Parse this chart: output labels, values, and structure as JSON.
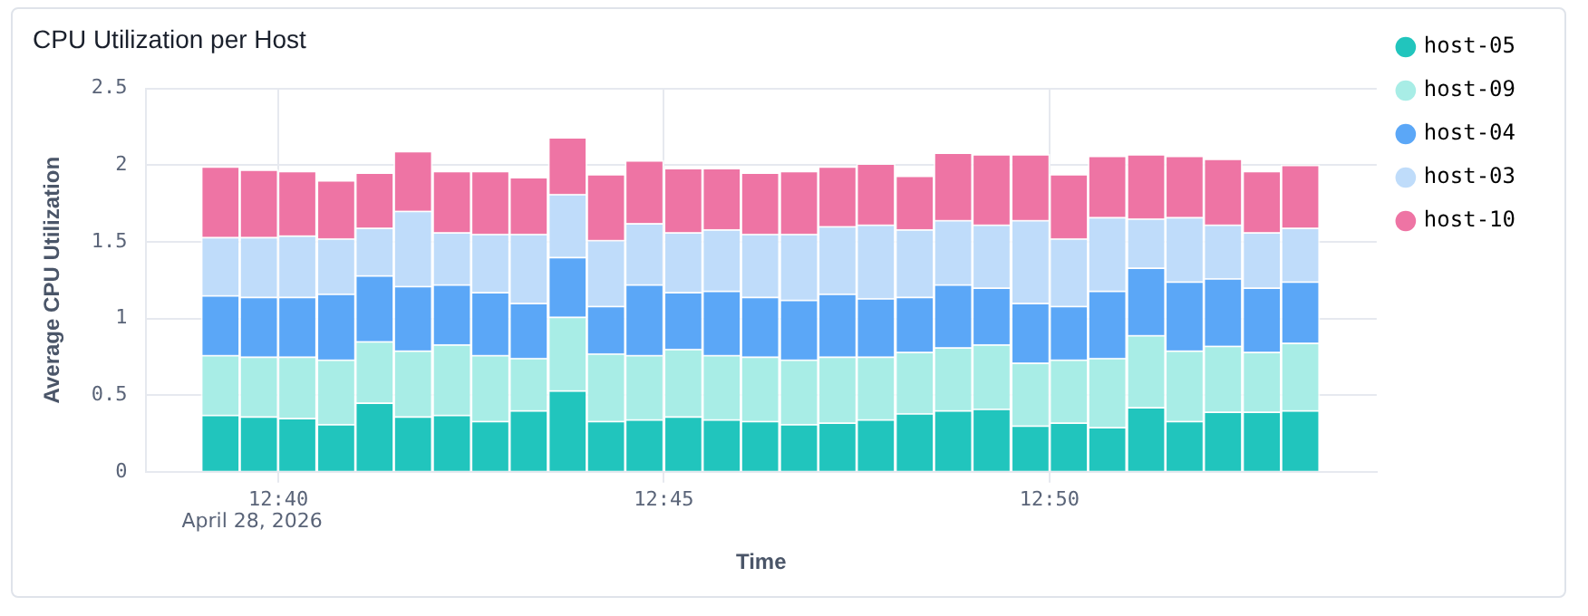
{
  "chart_data": {
    "type": "bar",
    "title": "CPU Utilization per Host",
    "xlabel": "Time",
    "ylabel": "Average CPU Utilization",
    "stacked": true,
    "grid": true,
    "legend": "right",
    "annotations": [
      "April 28, 2026"
    ],
    "x": [
      12.6542,
      12.6625,
      12.6708,
      12.6792,
      12.6875,
      12.6958,
      12.7042,
      12.7125,
      12.7208,
      12.7292,
      12.7375,
      12.7458,
      12.7542,
      12.7625,
      12.7708,
      12.7792,
      12.7875,
      12.7958,
      12.8042,
      12.8125,
      12.8208,
      12.8292,
      12.8375,
      12.8458,
      12.8542,
      12.8625,
      12.8708,
      12.8792,
      12.8875
    ],
    "xlim": [
      12.638,
      12.904
    ],
    "xticks": [
      {
        "value": 12.6667,
        "label": "12:40"
      },
      {
        "value": 12.75,
        "label": "12:45"
      },
      {
        "value": 12.8333,
        "label": "12:50"
      }
    ],
    "ylim": [
      0,
      2.5
    ],
    "yticks": [
      0,
      0.5,
      1,
      1.5,
      2,
      2.5
    ],
    "series": [
      {
        "name": "host-05",
        "color": "#21c5bd",
        "values": [
          0.37,
          0.36,
          0.35,
          0.31,
          0.45,
          0.36,
          0.37,
          0.33,
          0.4,
          0.53,
          0.33,
          0.34,
          0.36,
          0.34,
          0.33,
          0.31,
          0.32,
          0.34,
          0.38,
          0.4,
          0.41,
          0.3,
          0.32,
          0.29,
          0.42,
          0.33,
          0.39,
          0.39,
          0.4
        ]
      },
      {
        "name": "host-09",
        "color": "#a8ede6",
        "values": [
          0.39,
          0.39,
          0.4,
          0.42,
          0.4,
          0.43,
          0.46,
          0.43,
          0.34,
          0.48,
          0.44,
          0.42,
          0.44,
          0.42,
          0.42,
          0.42,
          0.43,
          0.41,
          0.4,
          0.41,
          0.42,
          0.41,
          0.41,
          0.45,
          0.47,
          0.46,
          0.43,
          0.39,
          0.44
        ]
      },
      {
        "name": "host-04",
        "color": "#5ba7f7",
        "values": [
          0.39,
          0.39,
          0.39,
          0.43,
          0.43,
          0.42,
          0.39,
          0.41,
          0.36,
          0.39,
          0.31,
          0.46,
          0.37,
          0.42,
          0.39,
          0.39,
          0.41,
          0.38,
          0.36,
          0.41,
          0.37,
          0.39,
          0.35,
          0.44,
          0.44,
          0.45,
          0.44,
          0.42,
          0.4
        ]
      },
      {
        "name": "host-03",
        "color": "#bfdcfa",
        "values": [
          0.38,
          0.39,
          0.4,
          0.36,
          0.31,
          0.49,
          0.34,
          0.38,
          0.45,
          0.41,
          0.43,
          0.4,
          0.39,
          0.4,
          0.41,
          0.43,
          0.44,
          0.48,
          0.44,
          0.42,
          0.41,
          0.54,
          0.44,
          0.48,
          0.32,
          0.42,
          0.35,
          0.36,
          0.35
        ]
      },
      {
        "name": "host-10",
        "color": "#ee74a4",
        "values": [
          0.46,
          0.44,
          0.42,
          0.38,
          0.36,
          0.39,
          0.4,
          0.41,
          0.37,
          0.37,
          0.43,
          0.41,
          0.42,
          0.4,
          0.4,
          0.41,
          0.39,
          0.4,
          0.35,
          0.44,
          0.46,
          0.43,
          0.42,
          0.4,
          0.42,
          0.4,
          0.43,
          0.4,
          0.41
        ]
      }
    ]
  }
}
